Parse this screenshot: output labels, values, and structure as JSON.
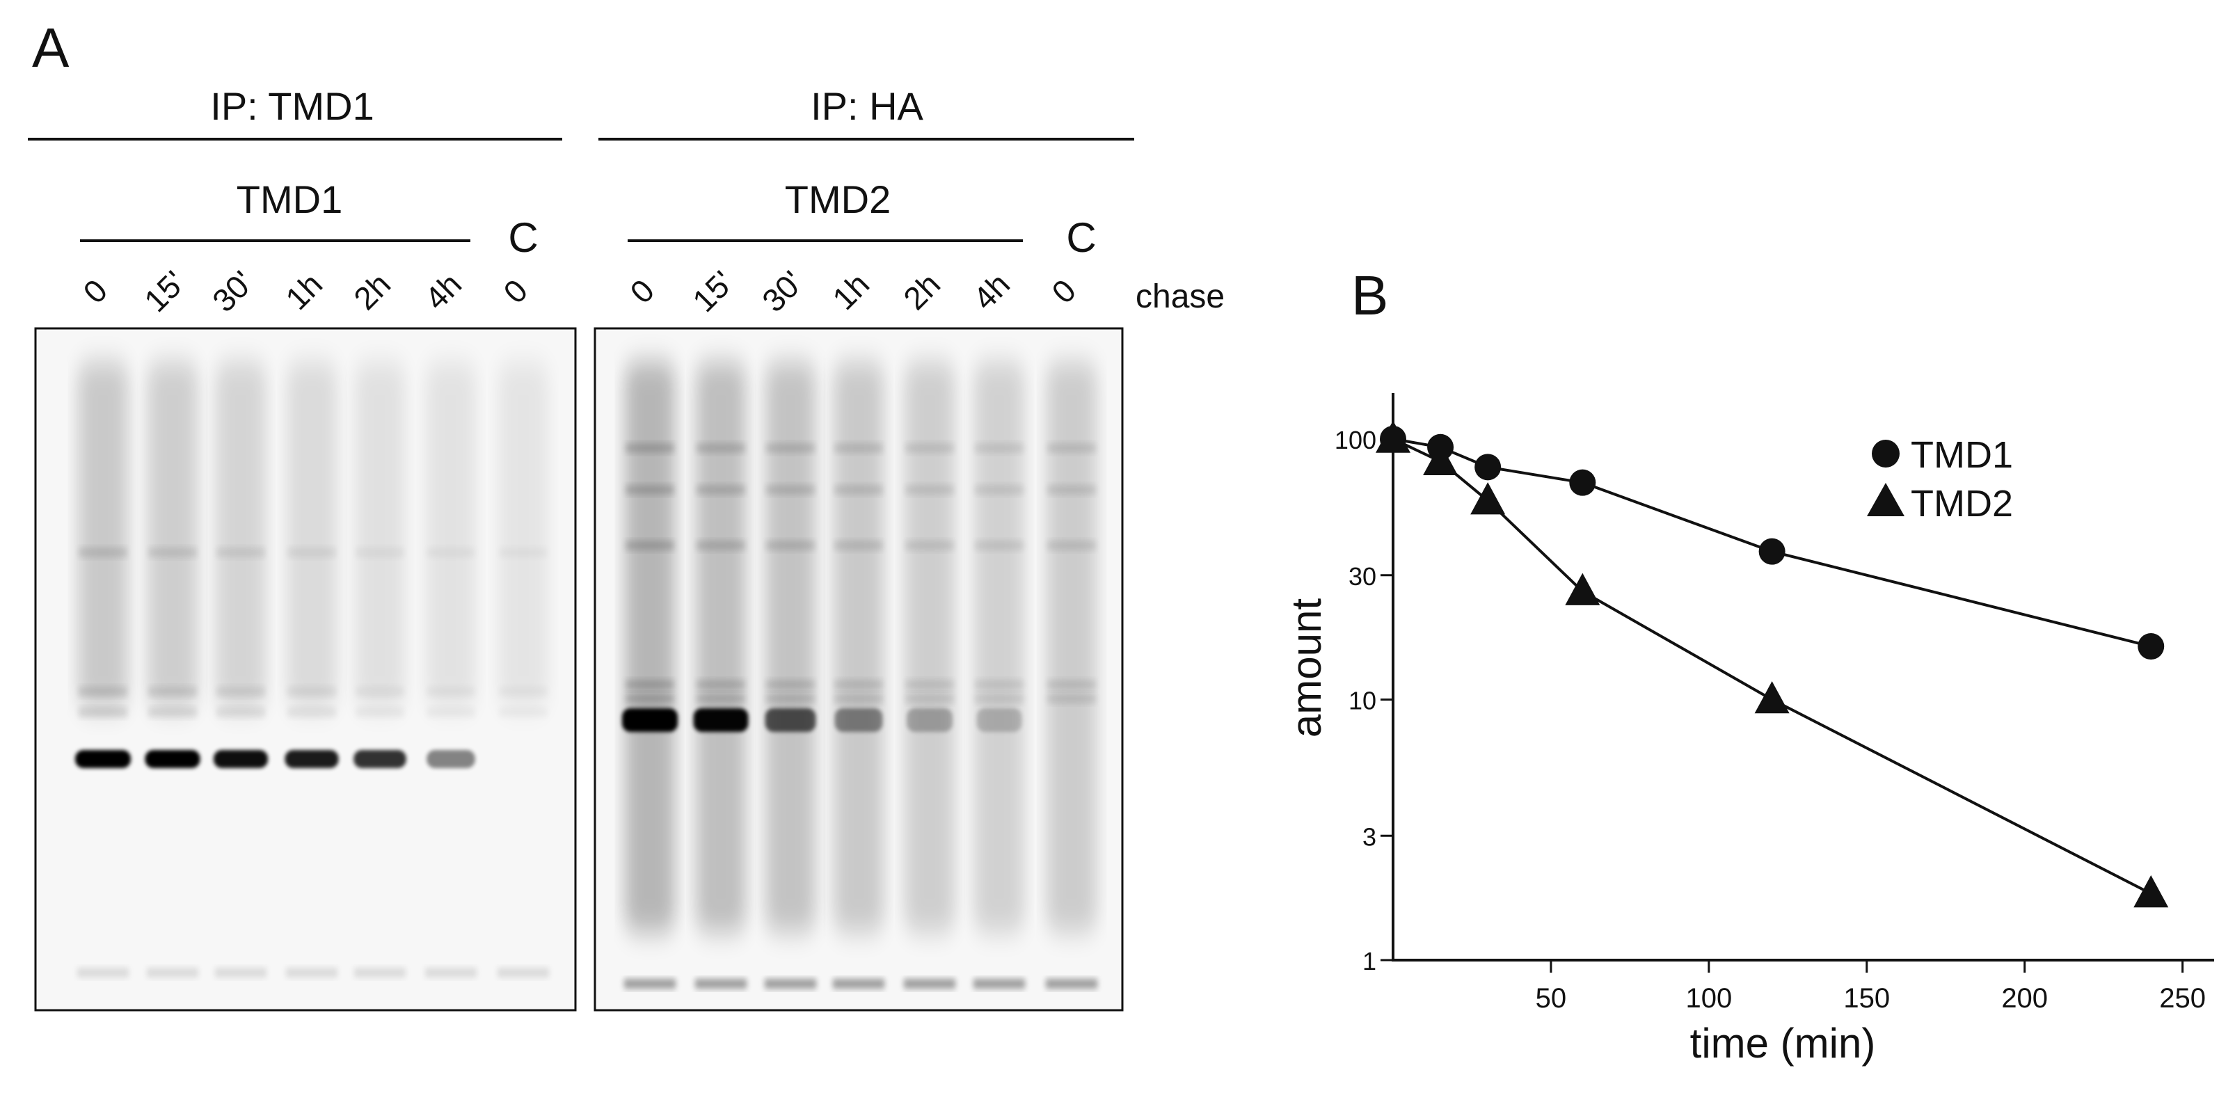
{
  "panel_a": {
    "label": "A",
    "left_group": {
      "ip_label": "IP: TMD1",
      "protein_label": "TMD1",
      "control_label": "C",
      "lanes": [
        "0",
        "15'",
        "30'",
        "1h",
        "2h",
        "4h",
        "0"
      ]
    },
    "right_group": {
      "ip_label": "IP: HA",
      "protein_label": "TMD2",
      "control_label": "C",
      "lanes": [
        "0",
        "15'",
        "30'",
        "1h",
        "2h",
        "4h",
        "0"
      ]
    },
    "chase_label": "chase",
    "left_gel": {
      "main_band_intensity": [
        1.0,
        0.95,
        0.88,
        0.82,
        0.72,
        0.35,
        0.0
      ],
      "smear_intensity": [
        0.55,
        0.45,
        0.35,
        0.22,
        0.12,
        0.08,
        0.04
      ]
    },
    "right_gel": {
      "main_band_intensity": [
        1.0,
        0.92,
        0.55,
        0.3,
        0.12,
        0.05,
        0.0
      ],
      "smear_intensity": [
        0.9,
        0.75,
        0.65,
        0.55,
        0.45,
        0.4,
        0.5
      ]
    }
  },
  "chart_data": {
    "panel_label": "B",
    "type": "line",
    "xlabel": "time (min)",
    "ylabel": "amount",
    "xlim": [
      0,
      260
    ],
    "ylim": [
      1,
      150
    ],
    "y_scale": "log",
    "xticks": [
      50,
      100,
      150,
      200,
      250
    ],
    "yticks": [
      1,
      3,
      10,
      30,
      100
    ],
    "ytick_labels": [
      "1",
      "3",
      "10",
      "30",
      "100"
    ],
    "legend_position": "top-right",
    "series": [
      {
        "name": "TMD1",
        "marker": "circle",
        "x": [
          0,
          15,
          30,
          60,
          120,
          240
        ],
        "y": [
          100,
          93,
          78,
          68,
          37,
          16
        ]
      },
      {
        "name": "TMD2",
        "marker": "triangle",
        "x": [
          0,
          15,
          30,
          60,
          120,
          240
        ],
        "y": [
          100,
          82,
          58,
          26,
          10,
          1.8
        ]
      }
    ]
  }
}
